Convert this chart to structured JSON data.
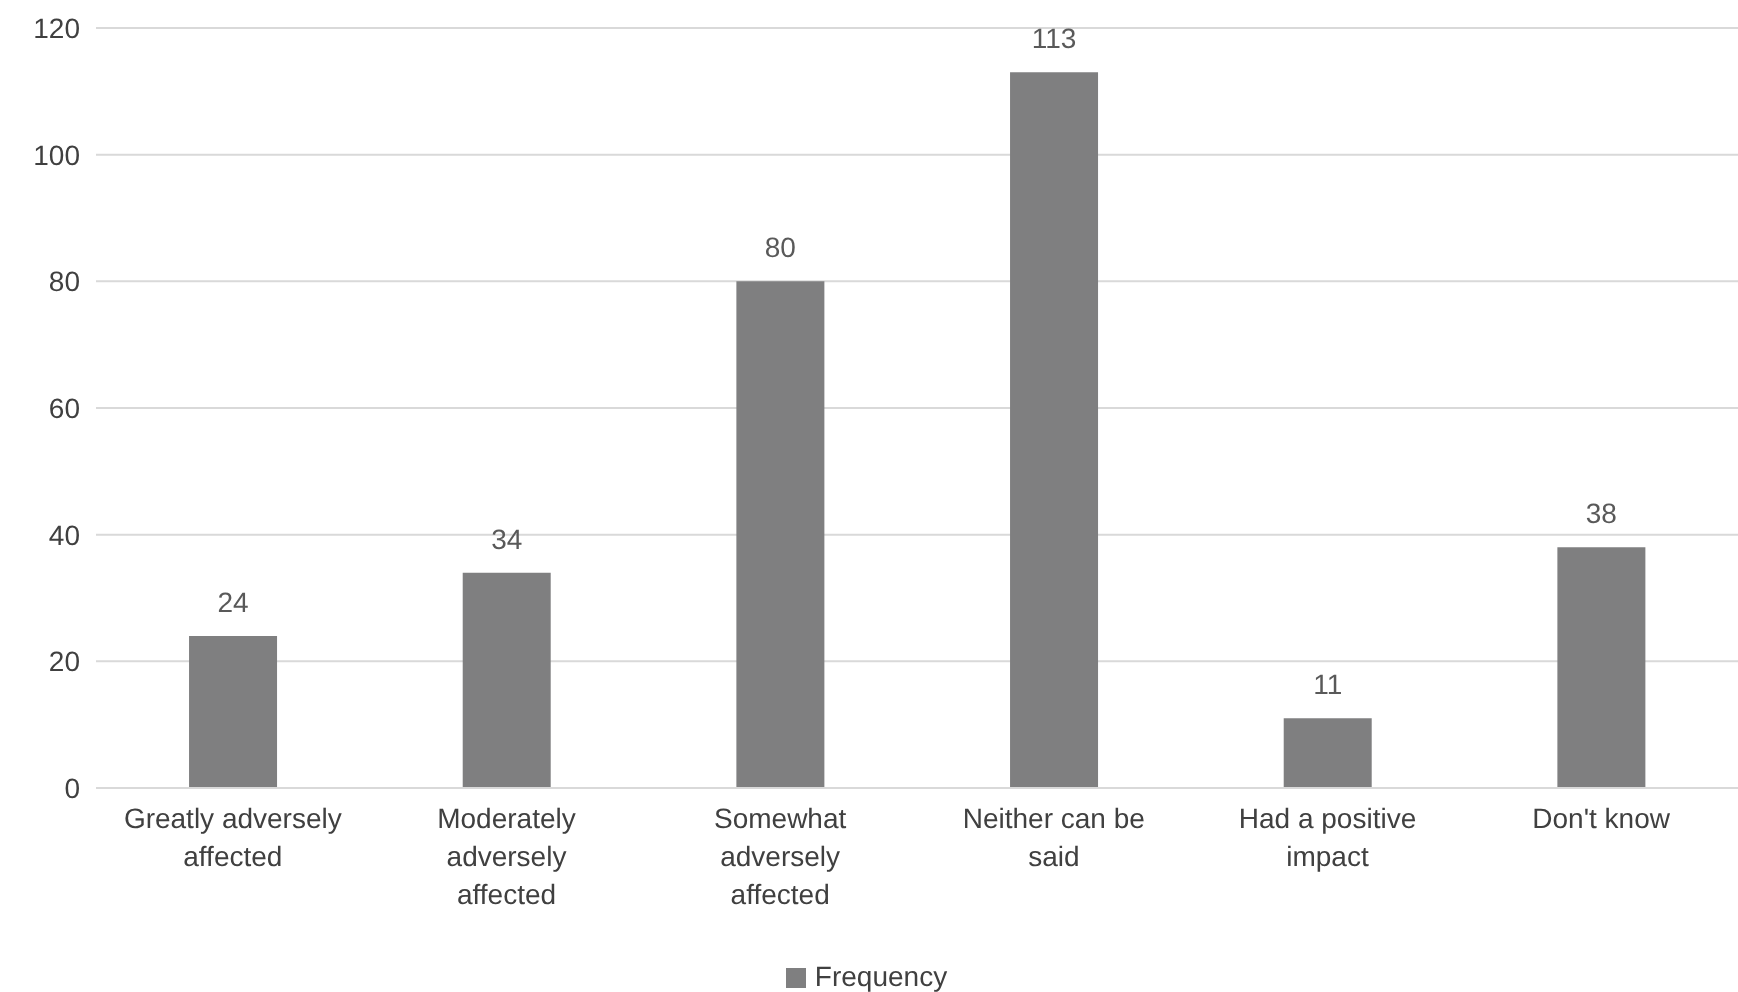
{
  "chart_data": {
    "type": "bar",
    "categories": [
      "Greatly adversely affected",
      "Moderately adversely affected",
      "Somewhat adversely affected",
      "Neither can be said",
      "Had a positive impact",
      "Don't know"
    ],
    "series": [
      {
        "name": "Frequency",
        "color": "#7f7f80",
        "values": [
          24,
          34,
          80,
          113,
          11,
          38
        ]
      }
    ],
    "ylim": [
      0,
      120
    ],
    "yticks": [
      0,
      20,
      40,
      60,
      80,
      100,
      120
    ],
    "grid": "y",
    "legend": "bottom",
    "data_labels": true
  }
}
